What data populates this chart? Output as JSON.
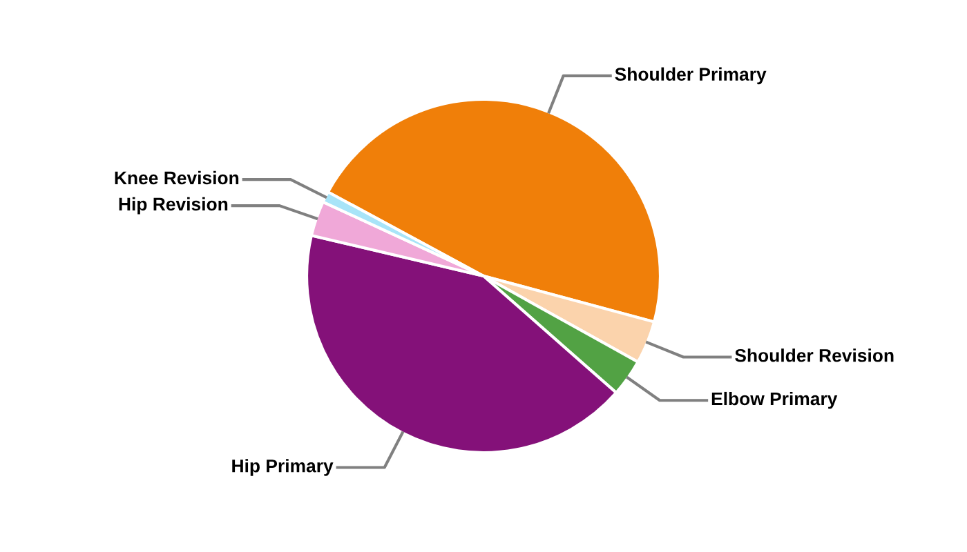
{
  "chart_data": {
    "type": "pie",
    "categories": [
      "Shoulder Primary",
      "Shoulder Revision",
      "Elbow Primary",
      "Hip Primary",
      "Hip Revision",
      "Knee Revision"
    ],
    "values": [
      46.3,
      3.9,
      3.4,
      42.2,
      3.2,
      1.0
    ],
    "colors": [
      "#f07f09",
      "#fbd3ac",
      "#52a244",
      "#841179",
      "#f0a8d8",
      "#a8e4f8"
    ],
    "legend": false
  }
}
